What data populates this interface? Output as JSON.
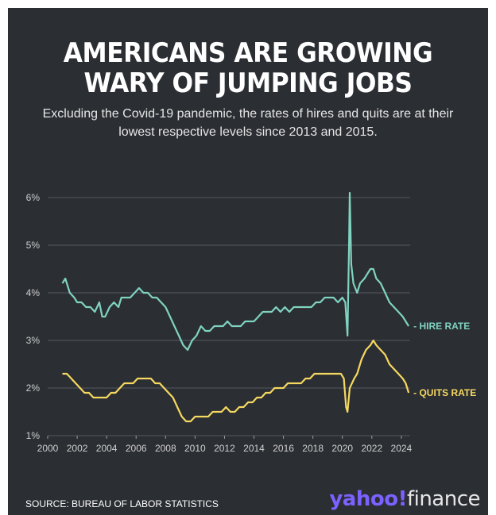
{
  "title_line1": "AMERICANS ARE GROWING",
  "title_line2": "WARY OF JUMPING JOBS",
  "subtitle_line1": "Excluding the Covid-19 pandemic, the rates of hires and quits are at their",
  "subtitle_line2": "lowest respective levels since 2013 and 2015.",
  "source": "SOURCE: BUREAU OF LABOR STATISTICS",
  "logo": {
    "part1": "yahoo",
    "mark": "!",
    "part2": "finance"
  },
  "colors": {
    "hire": "#7fd3c0",
    "quits": "#f5d860",
    "background": "#2b2e33"
  },
  "chart_data": {
    "type": "line",
    "title": "AMERICANS ARE GROWING WARY OF JUMPING JOBS",
    "xlim": [
      2000,
      2024.6
    ],
    "ylim": [
      1,
      6
    ],
    "x_ticks": [
      2000,
      2002,
      2004,
      2006,
      2008,
      2010,
      2012,
      2014,
      2016,
      2018,
      2020,
      2022,
      2024
    ],
    "y_ticks": [
      1,
      2,
      3,
      4,
      5,
      6
    ],
    "y_tick_labels": [
      "1%",
      "2%",
      "3%",
      "4%",
      "5%",
      "6%"
    ],
    "grid": "horizontal",
    "series": [
      {
        "name": "HIRE RATE",
        "color": "#7fd3c0",
        "points": [
          [
            2001.0,
            4.2
          ],
          [
            2001.2,
            4.3
          ],
          [
            2001.5,
            4.0
          ],
          [
            2001.8,
            3.9
          ],
          [
            2002.0,
            3.8
          ],
          [
            2002.3,
            3.8
          ],
          [
            2002.6,
            3.7
          ],
          [
            2002.9,
            3.7
          ],
          [
            2003.2,
            3.6
          ],
          [
            2003.5,
            3.8
          ],
          [
            2003.7,
            3.5
          ],
          [
            2003.9,
            3.5
          ],
          [
            2004.2,
            3.7
          ],
          [
            2004.5,
            3.8
          ],
          [
            2004.8,
            3.7
          ],
          [
            2005.0,
            3.9
          ],
          [
            2005.3,
            3.9
          ],
          [
            2005.6,
            3.9
          ],
          [
            2005.9,
            4.0
          ],
          [
            2006.2,
            4.1
          ],
          [
            2006.5,
            4.0
          ],
          [
            2006.8,
            4.0
          ],
          [
            2007.1,
            3.9
          ],
          [
            2007.4,
            3.9
          ],
          [
            2007.7,
            3.8
          ],
          [
            2008.0,
            3.7
          ],
          [
            2008.3,
            3.5
          ],
          [
            2008.6,
            3.3
          ],
          [
            2008.9,
            3.1
          ],
          [
            2009.2,
            2.9
          ],
          [
            2009.5,
            2.8
          ],
          [
            2009.8,
            3.0
          ],
          [
            2010.1,
            3.1
          ],
          [
            2010.4,
            3.3
          ],
          [
            2010.7,
            3.2
          ],
          [
            2011.0,
            3.2
          ],
          [
            2011.3,
            3.3
          ],
          [
            2011.6,
            3.3
          ],
          [
            2011.9,
            3.3
          ],
          [
            2012.2,
            3.4
          ],
          [
            2012.5,
            3.3
          ],
          [
            2012.8,
            3.3
          ],
          [
            2013.1,
            3.3
          ],
          [
            2013.4,
            3.4
          ],
          [
            2013.7,
            3.4
          ],
          [
            2014.0,
            3.4
          ],
          [
            2014.3,
            3.5
          ],
          [
            2014.6,
            3.6
          ],
          [
            2014.9,
            3.6
          ],
          [
            2015.2,
            3.6
          ],
          [
            2015.5,
            3.7
          ],
          [
            2015.8,
            3.6
          ],
          [
            2016.1,
            3.7
          ],
          [
            2016.4,
            3.6
          ],
          [
            2016.7,
            3.7
          ],
          [
            2017.0,
            3.7
          ],
          [
            2017.3,
            3.7
          ],
          [
            2017.6,
            3.7
          ],
          [
            2017.9,
            3.7
          ],
          [
            2018.2,
            3.8
          ],
          [
            2018.5,
            3.8
          ],
          [
            2018.8,
            3.9
          ],
          [
            2019.1,
            3.9
          ],
          [
            2019.4,
            3.9
          ],
          [
            2019.7,
            3.8
          ],
          [
            2020.0,
            3.9
          ],
          [
            2020.2,
            3.8
          ],
          [
            2020.35,
            3.1
          ],
          [
            2020.45,
            5.0
          ],
          [
            2020.5,
            6.1
          ],
          [
            2020.6,
            4.6
          ],
          [
            2020.75,
            4.2
          ],
          [
            2021.0,
            4.0
          ],
          [
            2021.2,
            4.2
          ],
          [
            2021.5,
            4.3
          ],
          [
            2021.7,
            4.4
          ],
          [
            2021.9,
            4.5
          ],
          [
            2022.1,
            4.5
          ],
          [
            2022.3,
            4.3
          ],
          [
            2022.6,
            4.2
          ],
          [
            2022.9,
            4.0
          ],
          [
            2023.2,
            3.8
          ],
          [
            2023.5,
            3.7
          ],
          [
            2023.8,
            3.6
          ],
          [
            2024.1,
            3.5
          ],
          [
            2024.3,
            3.4
          ],
          [
            2024.5,
            3.3
          ]
        ]
      },
      {
        "name": "QUITS RATE",
        "color": "#f5d860",
        "points": [
          [
            2001.0,
            2.3
          ],
          [
            2001.3,
            2.3
          ],
          [
            2001.6,
            2.2
          ],
          [
            2001.9,
            2.1
          ],
          [
            2002.2,
            2.0
          ],
          [
            2002.5,
            1.9
          ],
          [
            2002.8,
            1.9
          ],
          [
            2003.1,
            1.8
          ],
          [
            2003.4,
            1.8
          ],
          [
            2003.7,
            1.8
          ],
          [
            2004.0,
            1.8
          ],
          [
            2004.3,
            1.9
          ],
          [
            2004.6,
            1.9
          ],
          [
            2004.9,
            2.0
          ],
          [
            2005.2,
            2.1
          ],
          [
            2005.5,
            2.1
          ],
          [
            2005.8,
            2.1
          ],
          [
            2006.1,
            2.2
          ],
          [
            2006.4,
            2.2
          ],
          [
            2006.7,
            2.2
          ],
          [
            2007.0,
            2.2
          ],
          [
            2007.3,
            2.1
          ],
          [
            2007.6,
            2.1
          ],
          [
            2007.9,
            2.0
          ],
          [
            2008.2,
            1.9
          ],
          [
            2008.5,
            1.8
          ],
          [
            2008.8,
            1.6
          ],
          [
            2009.1,
            1.4
          ],
          [
            2009.4,
            1.3
          ],
          [
            2009.7,
            1.3
          ],
          [
            2010.0,
            1.4
          ],
          [
            2010.3,
            1.4
          ],
          [
            2010.6,
            1.4
          ],
          [
            2010.9,
            1.4
          ],
          [
            2011.2,
            1.5
          ],
          [
            2011.5,
            1.5
          ],
          [
            2011.8,
            1.5
          ],
          [
            2012.1,
            1.6
          ],
          [
            2012.4,
            1.5
          ],
          [
            2012.7,
            1.5
          ],
          [
            2013.0,
            1.6
          ],
          [
            2013.3,
            1.6
          ],
          [
            2013.6,
            1.7
          ],
          [
            2013.9,
            1.7
          ],
          [
            2014.2,
            1.8
          ],
          [
            2014.5,
            1.8
          ],
          [
            2014.8,
            1.9
          ],
          [
            2015.1,
            1.9
          ],
          [
            2015.4,
            2.0
          ],
          [
            2015.7,
            2.0
          ],
          [
            2016.0,
            2.0
          ],
          [
            2016.3,
            2.1
          ],
          [
            2016.6,
            2.1
          ],
          [
            2016.9,
            2.1
          ],
          [
            2017.2,
            2.1
          ],
          [
            2017.5,
            2.2
          ],
          [
            2017.8,
            2.2
          ],
          [
            2018.1,
            2.3
          ],
          [
            2018.4,
            2.3
          ],
          [
            2018.7,
            2.3
          ],
          [
            2019.0,
            2.3
          ],
          [
            2019.3,
            2.3
          ],
          [
            2019.6,
            2.3
          ],
          [
            2019.9,
            2.3
          ],
          [
            2020.1,
            2.2
          ],
          [
            2020.25,
            1.6
          ],
          [
            2020.35,
            1.5
          ],
          [
            2020.5,
            2.0
          ],
          [
            2020.8,
            2.2
          ],
          [
            2021.0,
            2.3
          ],
          [
            2021.3,
            2.6
          ],
          [
            2021.6,
            2.8
          ],
          [
            2021.9,
            2.9
          ],
          [
            2022.1,
            3.0
          ],
          [
            2022.3,
            2.9
          ],
          [
            2022.6,
            2.8
          ],
          [
            2022.9,
            2.7
          ],
          [
            2023.2,
            2.5
          ],
          [
            2023.5,
            2.4
          ],
          [
            2023.8,
            2.3
          ],
          [
            2024.1,
            2.2
          ],
          [
            2024.3,
            2.1
          ],
          [
            2024.5,
            1.9
          ]
        ]
      }
    ]
  }
}
